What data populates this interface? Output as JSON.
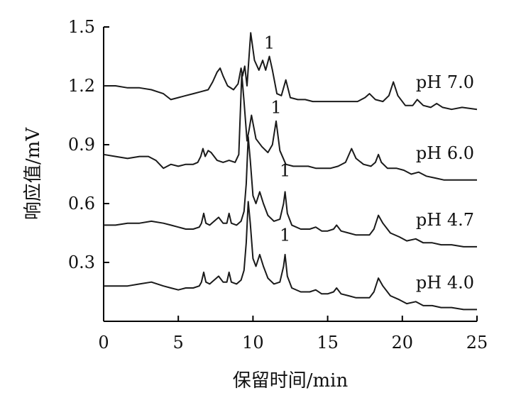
{
  "chart_data": {
    "type": "line",
    "xlabel": "保留时间/min",
    "ylabel": "响应值/mV",
    "xlim": [
      0,
      25
    ],
    "ylim": [
      0,
      1.5
    ],
    "x_ticks": [
      "0",
      "5",
      "10",
      "15",
      "20",
      "25"
    ],
    "y_ticks": [
      "0.3",
      "0.6",
      "0.9",
      "1.2",
      "1.5"
    ],
    "grid": false,
    "peak_marker": "1",
    "series": [
      {
        "name": "pH 7.0",
        "peak_label": {
          "text": "1",
          "x": 11.1,
          "y": 1.39
        },
        "points": [
          [
            0,
            1.2
          ],
          [
            0.8,
            1.2
          ],
          [
            1.6,
            1.19
          ],
          [
            2.4,
            1.19
          ],
          [
            3.2,
            1.18
          ],
          [
            4.0,
            1.16
          ],
          [
            4.5,
            1.13
          ],
          [
            5.0,
            1.14
          ],
          [
            5.5,
            1.15
          ],
          [
            6.0,
            1.16
          ],
          [
            6.5,
            1.17
          ],
          [
            7.0,
            1.18
          ],
          [
            7.3,
            1.22
          ],
          [
            7.6,
            1.27
          ],
          [
            7.8,
            1.29
          ],
          [
            8.0,
            1.25
          ],
          [
            8.3,
            1.2
          ],
          [
            8.7,
            1.18
          ],
          [
            9.0,
            1.21
          ],
          [
            9.2,
            1.29
          ],
          [
            9.3,
            1.25
          ],
          [
            9.45,
            1.3
          ],
          [
            9.6,
            1.2
          ],
          [
            9.85,
            1.47
          ],
          [
            10.1,
            1.33
          ],
          [
            10.4,
            1.28
          ],
          [
            10.65,
            1.33
          ],
          [
            10.85,
            1.28
          ],
          [
            11.1,
            1.35
          ],
          [
            11.3,
            1.28
          ],
          [
            11.6,
            1.16
          ],
          [
            11.9,
            1.15
          ],
          [
            12.2,
            1.23
          ],
          [
            12.5,
            1.14
          ],
          [
            13.0,
            1.13
          ],
          [
            13.5,
            1.13
          ],
          [
            14.0,
            1.12
          ],
          [
            14.5,
            1.12
          ],
          [
            15.0,
            1.12
          ],
          [
            15.5,
            1.12
          ],
          [
            16.0,
            1.12
          ],
          [
            16.5,
            1.12
          ],
          [
            17.0,
            1.12
          ],
          [
            17.5,
            1.14
          ],
          [
            17.8,
            1.16
          ],
          [
            18.2,
            1.13
          ],
          [
            18.7,
            1.12
          ],
          [
            19.1,
            1.15
          ],
          [
            19.4,
            1.22
          ],
          [
            19.7,
            1.15
          ],
          [
            20.2,
            1.1
          ],
          [
            20.7,
            1.1
          ],
          [
            21.0,
            1.13
          ],
          [
            21.4,
            1.1
          ],
          [
            21.9,
            1.09
          ],
          [
            22.3,
            1.11
          ],
          [
            22.7,
            1.09
          ],
          [
            23.3,
            1.08
          ],
          [
            24.0,
            1.09
          ],
          [
            25.0,
            1.08
          ]
        ]
      },
      {
        "name": "pH 6.0",
        "peak_label": {
          "text": "1",
          "x": 11.55,
          "y": 1.06
        },
        "points": [
          [
            0,
            0.85
          ],
          [
            0.8,
            0.84
          ],
          [
            1.6,
            0.83
          ],
          [
            2.4,
            0.84
          ],
          [
            3.0,
            0.84
          ],
          [
            3.5,
            0.82
          ],
          [
            4.0,
            0.78
          ],
          [
            4.5,
            0.8
          ],
          [
            5.0,
            0.79
          ],
          [
            5.5,
            0.8
          ],
          [
            6.0,
            0.8
          ],
          [
            6.3,
            0.81
          ],
          [
            6.5,
            0.84
          ],
          [
            6.65,
            0.88
          ],
          [
            6.8,
            0.84
          ],
          [
            7.0,
            0.87
          ],
          [
            7.2,
            0.86
          ],
          [
            7.6,
            0.82
          ],
          [
            8.0,
            0.81
          ],
          [
            8.4,
            0.82
          ],
          [
            8.8,
            0.81
          ],
          [
            9.05,
            0.85
          ],
          [
            9.25,
            1.26
          ],
          [
            9.4,
            1.12
          ],
          [
            9.6,
            0.92
          ],
          [
            9.75,
            0.98
          ],
          [
            9.9,
            1.05
          ],
          [
            10.2,
            0.93
          ],
          [
            10.6,
            0.89
          ],
          [
            11.0,
            0.86
          ],
          [
            11.3,
            0.9
          ],
          [
            11.55,
            1.02
          ],
          [
            11.8,
            0.87
          ],
          [
            12.2,
            0.8
          ],
          [
            12.7,
            0.79
          ],
          [
            13.2,
            0.79
          ],
          [
            13.7,
            0.79
          ],
          [
            14.2,
            0.78
          ],
          [
            14.7,
            0.78
          ],
          [
            15.2,
            0.78
          ],
          [
            15.7,
            0.79
          ],
          [
            16.2,
            0.81
          ],
          [
            16.6,
            0.88
          ],
          [
            16.9,
            0.83
          ],
          [
            17.4,
            0.8
          ],
          [
            17.9,
            0.79
          ],
          [
            18.2,
            0.81
          ],
          [
            18.4,
            0.85
          ],
          [
            18.6,
            0.81
          ],
          [
            19.0,
            0.78
          ],
          [
            19.6,
            0.78
          ],
          [
            20.1,
            0.77
          ],
          [
            20.6,
            0.75
          ],
          [
            21.1,
            0.76
          ],
          [
            21.6,
            0.74
          ],
          [
            22.2,
            0.73
          ],
          [
            22.8,
            0.72
          ],
          [
            23.5,
            0.72
          ],
          [
            24.2,
            0.72
          ],
          [
            25.0,
            0.72
          ]
        ]
      },
      {
        "name": "pH 4.7",
        "peak_label": {
          "text": "1",
          "x": 12.15,
          "y": 0.74
        },
        "points": [
          [
            0,
            0.49
          ],
          [
            0.8,
            0.49
          ],
          [
            1.6,
            0.5
          ],
          [
            2.4,
            0.5
          ],
          [
            3.2,
            0.51
          ],
          [
            4.0,
            0.5
          ],
          [
            4.5,
            0.49
          ],
          [
            5.0,
            0.48
          ],
          [
            5.5,
            0.47
          ],
          [
            6.0,
            0.47
          ],
          [
            6.4,
            0.48
          ],
          [
            6.55,
            0.5
          ],
          [
            6.7,
            0.55
          ],
          [
            6.85,
            0.5
          ],
          [
            7.1,
            0.49
          ],
          [
            7.4,
            0.51
          ],
          [
            7.7,
            0.53
          ],
          [
            8.0,
            0.5
          ],
          [
            8.25,
            0.5
          ],
          [
            8.4,
            0.55
          ],
          [
            8.55,
            0.5
          ],
          [
            8.9,
            0.49
          ],
          [
            9.2,
            0.51
          ],
          [
            9.4,
            0.56
          ],
          [
            9.55,
            0.7
          ],
          [
            9.68,
            0.94
          ],
          [
            9.82,
            0.82
          ],
          [
            10.0,
            0.64
          ],
          [
            10.2,
            0.6
          ],
          [
            10.45,
            0.66
          ],
          [
            10.7,
            0.6
          ],
          [
            11.0,
            0.54
          ],
          [
            11.4,
            0.51
          ],
          [
            11.8,
            0.52
          ],
          [
            12.05,
            0.6
          ],
          [
            12.15,
            0.66
          ],
          [
            12.3,
            0.55
          ],
          [
            12.6,
            0.49
          ],
          [
            13.2,
            0.47
          ],
          [
            13.8,
            0.47
          ],
          [
            14.2,
            0.48
          ],
          [
            14.6,
            0.46
          ],
          [
            15.0,
            0.46
          ],
          [
            15.4,
            0.47
          ],
          [
            15.6,
            0.49
          ],
          [
            15.9,
            0.46
          ],
          [
            16.4,
            0.45
          ],
          [
            16.9,
            0.44
          ],
          [
            17.4,
            0.44
          ],
          [
            17.8,
            0.44
          ],
          [
            18.1,
            0.47
          ],
          [
            18.4,
            0.54
          ],
          [
            18.7,
            0.5
          ],
          [
            19.2,
            0.45
          ],
          [
            19.8,
            0.43
          ],
          [
            20.3,
            0.41
          ],
          [
            20.9,
            0.42
          ],
          [
            21.4,
            0.4
          ],
          [
            22.0,
            0.4
          ],
          [
            22.6,
            0.39
          ],
          [
            23.3,
            0.39
          ],
          [
            24.1,
            0.38
          ],
          [
            25.0,
            0.38
          ]
        ]
      },
      {
        "name": "pH 4.0",
        "peak_label": {
          "text": "1",
          "x": 12.15,
          "y": 0.41
        },
        "points": [
          [
            0,
            0.18
          ],
          [
            0.8,
            0.18
          ],
          [
            1.6,
            0.18
          ],
          [
            2.4,
            0.19
          ],
          [
            3.2,
            0.2
          ],
          [
            4.0,
            0.18
          ],
          [
            4.5,
            0.17
          ],
          [
            5.0,
            0.16
          ],
          [
            5.5,
            0.17
          ],
          [
            6.0,
            0.17
          ],
          [
            6.4,
            0.18
          ],
          [
            6.55,
            0.2
          ],
          [
            6.7,
            0.25
          ],
          [
            6.85,
            0.2
          ],
          [
            7.1,
            0.19
          ],
          [
            7.4,
            0.21
          ],
          [
            7.7,
            0.23
          ],
          [
            8.0,
            0.2
          ],
          [
            8.25,
            0.2
          ],
          [
            8.4,
            0.25
          ],
          [
            8.55,
            0.2
          ],
          [
            8.9,
            0.19
          ],
          [
            9.2,
            0.21
          ],
          [
            9.4,
            0.26
          ],
          [
            9.55,
            0.4
          ],
          [
            9.68,
            0.61
          ],
          [
            9.82,
            0.5
          ],
          [
            10.0,
            0.32
          ],
          [
            10.2,
            0.28
          ],
          [
            10.45,
            0.34
          ],
          [
            10.7,
            0.28
          ],
          [
            11.0,
            0.22
          ],
          [
            11.4,
            0.19
          ],
          [
            11.8,
            0.2
          ],
          [
            12.05,
            0.28
          ],
          [
            12.15,
            0.34
          ],
          [
            12.3,
            0.23
          ],
          [
            12.6,
            0.17
          ],
          [
            13.2,
            0.15
          ],
          [
            13.8,
            0.15
          ],
          [
            14.2,
            0.16
          ],
          [
            14.6,
            0.14
          ],
          [
            15.0,
            0.14
          ],
          [
            15.4,
            0.15
          ],
          [
            15.6,
            0.17
          ],
          [
            15.9,
            0.14
          ],
          [
            16.4,
            0.13
          ],
          [
            16.9,
            0.12
          ],
          [
            17.4,
            0.12
          ],
          [
            17.8,
            0.12
          ],
          [
            18.1,
            0.15
          ],
          [
            18.4,
            0.22
          ],
          [
            18.7,
            0.18
          ],
          [
            19.2,
            0.13
          ],
          [
            19.8,
            0.11
          ],
          [
            20.3,
            0.09
          ],
          [
            20.9,
            0.1
          ],
          [
            21.4,
            0.08
          ],
          [
            22.0,
            0.08
          ],
          [
            22.6,
            0.07
          ],
          [
            23.3,
            0.07
          ],
          [
            24.1,
            0.06
          ],
          [
            25.0,
            0.06
          ]
        ]
      }
    ]
  }
}
